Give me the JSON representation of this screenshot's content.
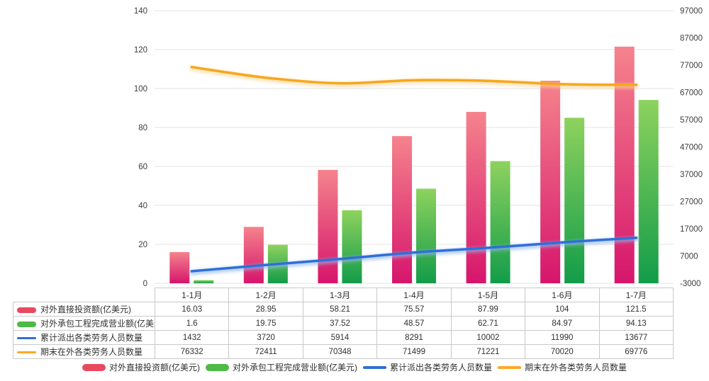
{
  "chart_data": {
    "type": "combo",
    "title": "",
    "categories": [
      "1-1月",
      "1-2月",
      "1-3月",
      "1-4月",
      "1-5月",
      "1-6月",
      "1-7月"
    ],
    "series": [
      {
        "name": "对外直接投资额(亿美元)",
        "kind": "bar",
        "axis": "left",
        "values": [
          16.03,
          28.95,
          58.21,
          75.57,
          87.99,
          104,
          121.5
        ],
        "display": [
          "16.03",
          "28.95",
          "58.21",
          "75.57",
          "87.99",
          "104",
          "121.5"
        ],
        "swatch": "#e8495f",
        "gradient_top": "#f5838c",
        "gradient_bottom": "#d6156c"
      },
      {
        "name": "对外承包工程完成营业额(亿美元)",
        "kind": "bar",
        "axis": "left",
        "values": [
          1.6,
          19.75,
          37.52,
          48.57,
          62.71,
          84.97,
          94.13
        ],
        "display": [
          "1.6",
          "19.75",
          "37.52",
          "48.57",
          "62.71",
          "84.97",
          "94.13"
        ],
        "swatch": "#4cbb45",
        "gradient_top": "#8ed25e",
        "gradient_bottom": "#129c49"
      },
      {
        "name": "累计派出各类劳务人员数量",
        "kind": "line",
        "axis": "right",
        "values": [
          1432,
          3720,
          5914,
          8291,
          10002,
          11990,
          13677
        ],
        "display": [
          "1432",
          "3720",
          "5914",
          "8291",
          "10002",
          "11990",
          "13677"
        ],
        "swatch": "#2e6fd8",
        "color": "#2e6fd8",
        "glow": "#8fb4ec"
      },
      {
        "name": "期末在外各类劳务人员数量",
        "kind": "line",
        "axis": "right",
        "values": [
          76332,
          72411,
          70348,
          71499,
          71221,
          70020,
          69776
        ],
        "display": [
          "76332",
          "72411",
          "70348",
          "71499",
          "71221",
          "70020",
          "69776"
        ],
        "swatch": "#ffa726",
        "color": "#f6a71c",
        "glow": "#ffd596"
      }
    ],
    "left_axis": {
      "min": 0,
      "max": 140,
      "step": 20,
      "ticks": [
        "0",
        "20",
        "40",
        "60",
        "80",
        "100",
        "120",
        "140"
      ]
    },
    "right_axis": {
      "min": -3000,
      "max": 97000,
      "step": 10000,
      "ticks": [
        "-3000",
        "7000",
        "17000",
        "27000",
        "37000",
        "47000",
        "57000",
        "67000",
        "77000",
        "87000",
        "97000"
      ]
    },
    "grid": true,
    "legend_position": "bottom"
  },
  "colors": {
    "grid": "#e3e3e3",
    "axis_text": "#3c3c3c",
    "table_border": "#c9c9c9",
    "table_text": "#303030",
    "background": "#ffffff"
  }
}
